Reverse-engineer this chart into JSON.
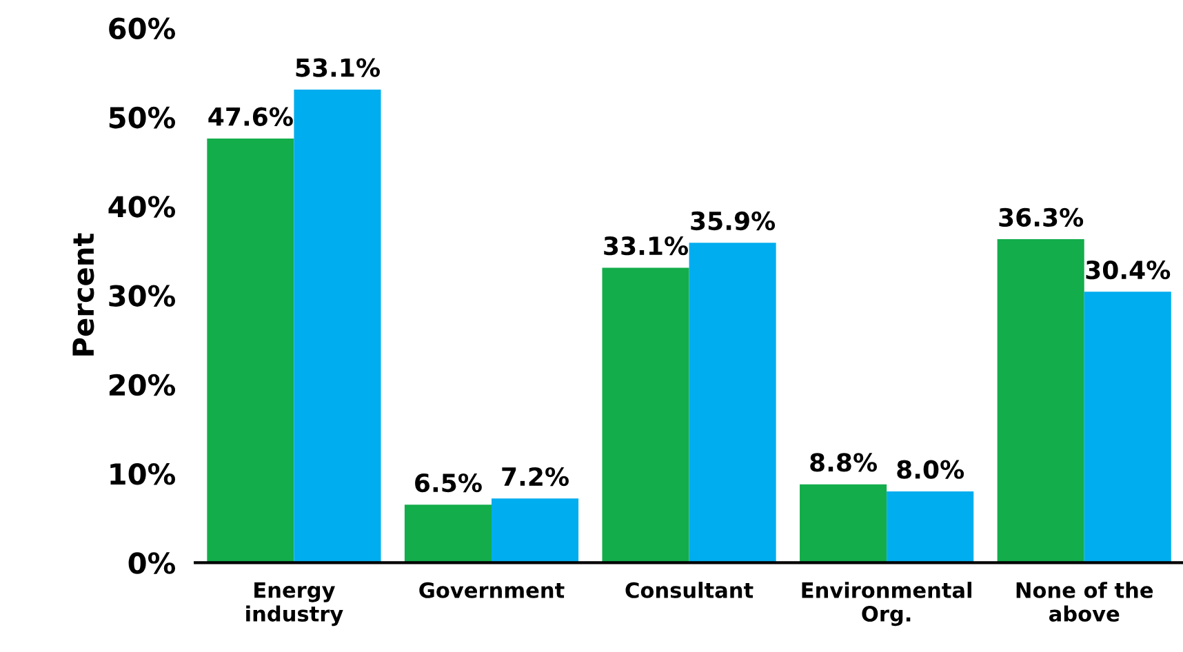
{
  "chart_data": {
    "type": "bar",
    "ylabel": "Percent",
    "categories": [
      "Energy\nindustry",
      "Government",
      "Consultant",
      "Environmental\nOrg.",
      "None of the\nabove"
    ],
    "series": [
      {
        "color": "#13ad4b",
        "values": [
          47.6,
          6.5,
          33.1,
          8.8,
          36.3
        ],
        "value_labels": [
          "47.6%",
          "6.5%",
          "33.1%",
          "8.8%",
          "36.3%"
        ]
      },
      {
        "color": "#00adef",
        "values": [
          53.1,
          7.2,
          35.9,
          8.0,
          30.4
        ],
        "value_labels": [
          "53.1%",
          "7.2%",
          "35.9%",
          "8.0%",
          "30.4%"
        ]
      }
    ],
    "ylim": [
      0,
      60
    ],
    "yticks": [
      {
        "value": 0,
        "label": "0%"
      },
      {
        "value": 10,
        "label": "10%"
      },
      {
        "value": 20,
        "label": "20%"
      },
      {
        "value": 30,
        "label": "30%"
      },
      {
        "value": 40,
        "label": "40%"
      },
      {
        "value": 50,
        "label": "50%"
      },
      {
        "value": 60,
        "label": "60%"
      }
    ],
    "grid": false,
    "legend": false
  }
}
